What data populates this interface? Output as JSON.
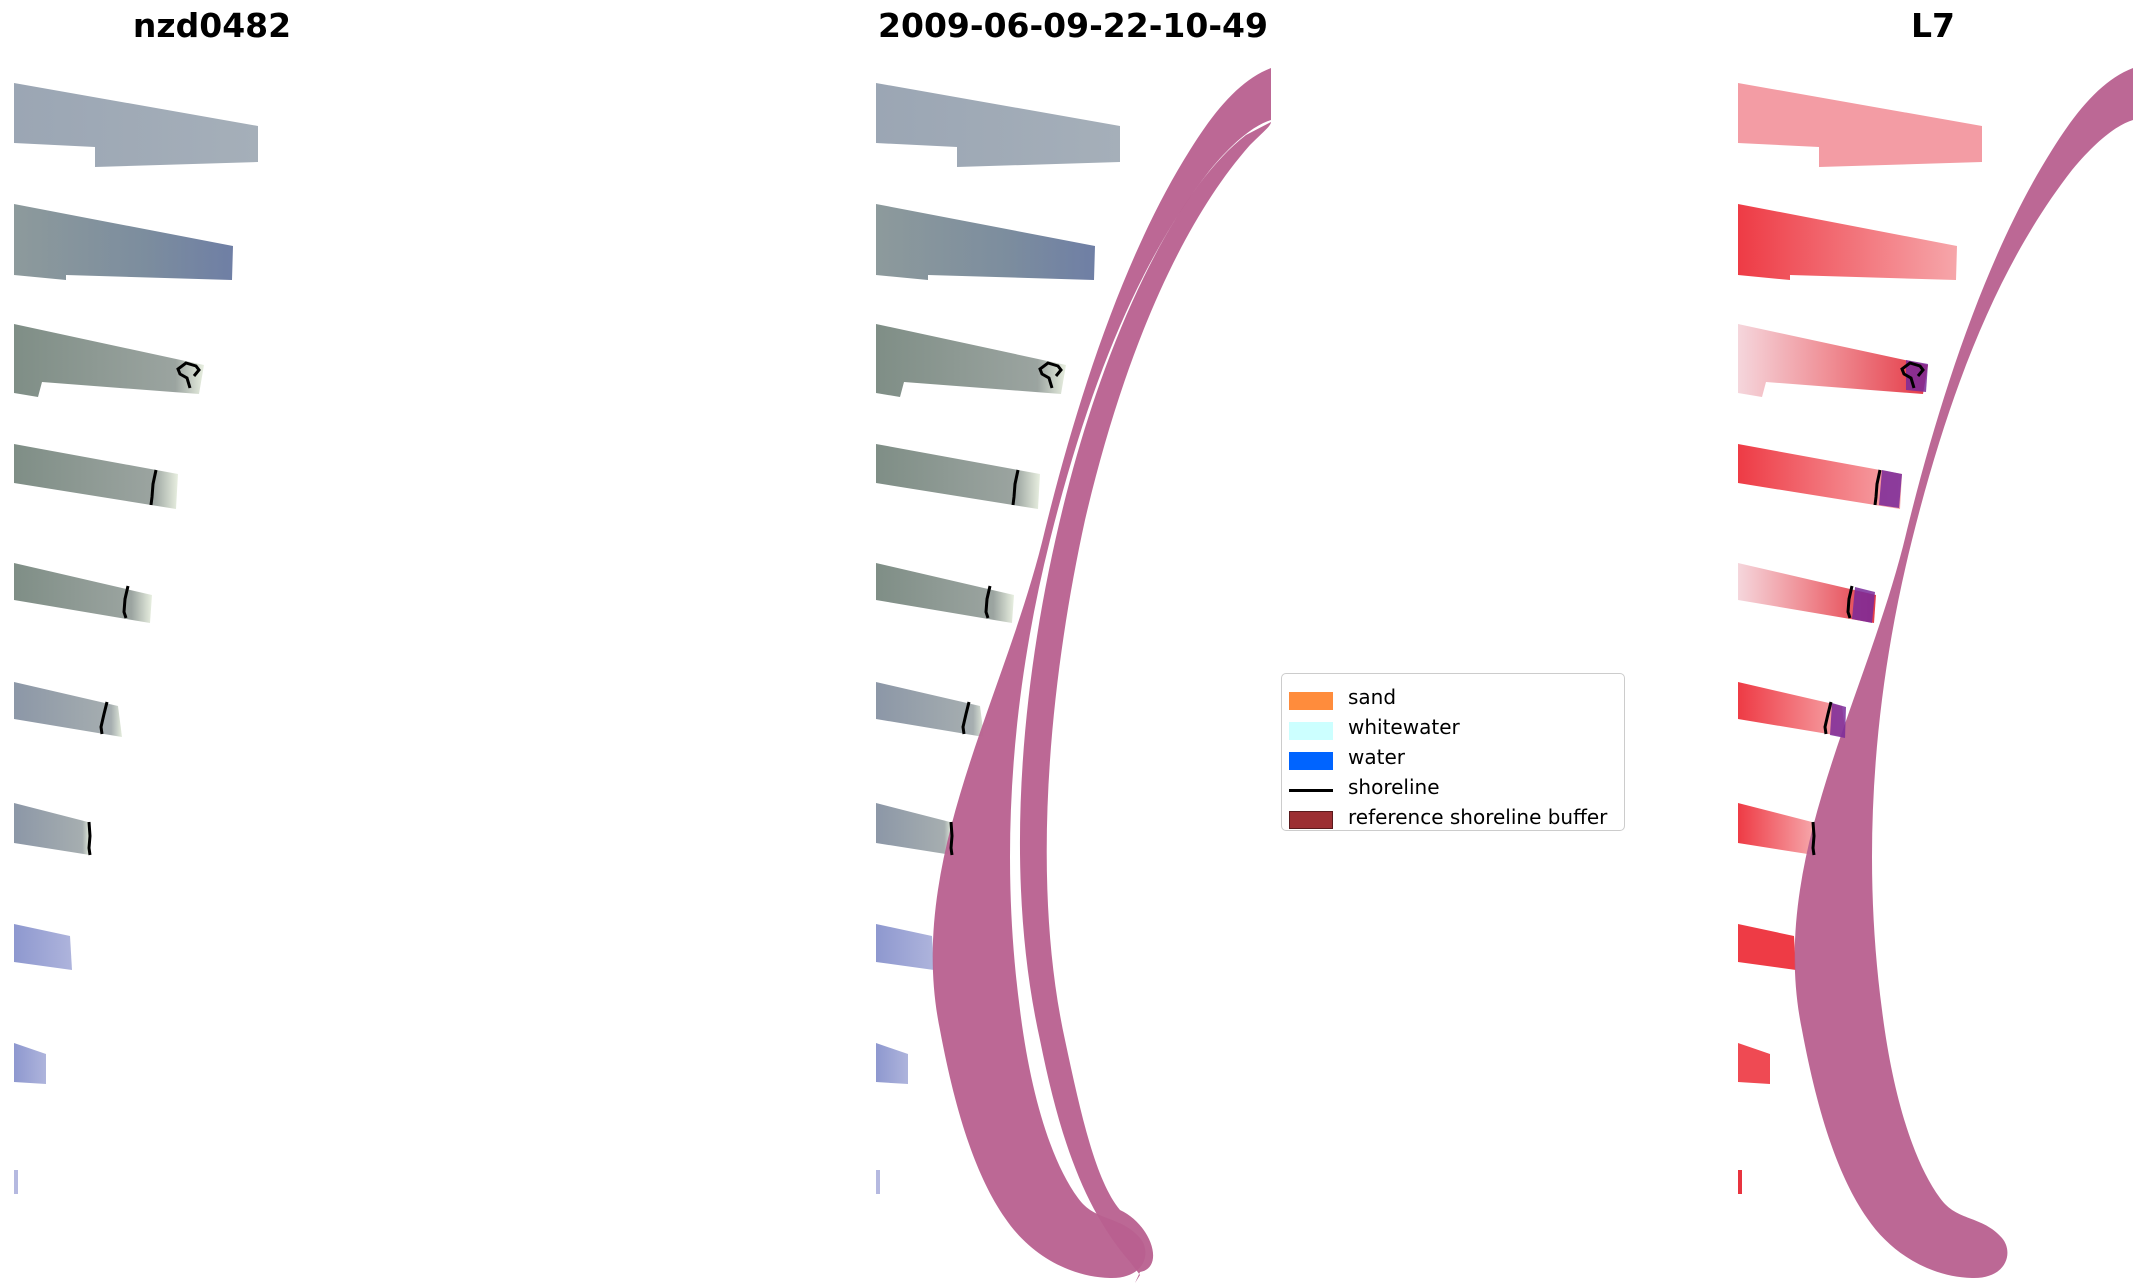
{
  "titles": {
    "left": "nzd0482",
    "middle": "2009-06-09-22-10-49",
    "right": "L7"
  },
  "legend": {
    "items": [
      {
        "label": "sand",
        "color": "#ff8c3c",
        "kind": "patch"
      },
      {
        "label": "whitewater",
        "color": "#ccffff",
        "kind": "patch"
      },
      {
        "label": "water",
        "color": "#0064ff",
        "kind": "patch"
      },
      {
        "label": "shoreline",
        "color": "#000000",
        "kind": "line"
      },
      {
        "label": "reference shoreline buffer",
        "color": "#9c2f33",
        "kind": "patch"
      }
    ]
  },
  "colors": {
    "buffer": "#b8608f",
    "rgb_strip": "#8e9aa9",
    "classified_strip": "#ee3b45"
  }
}
